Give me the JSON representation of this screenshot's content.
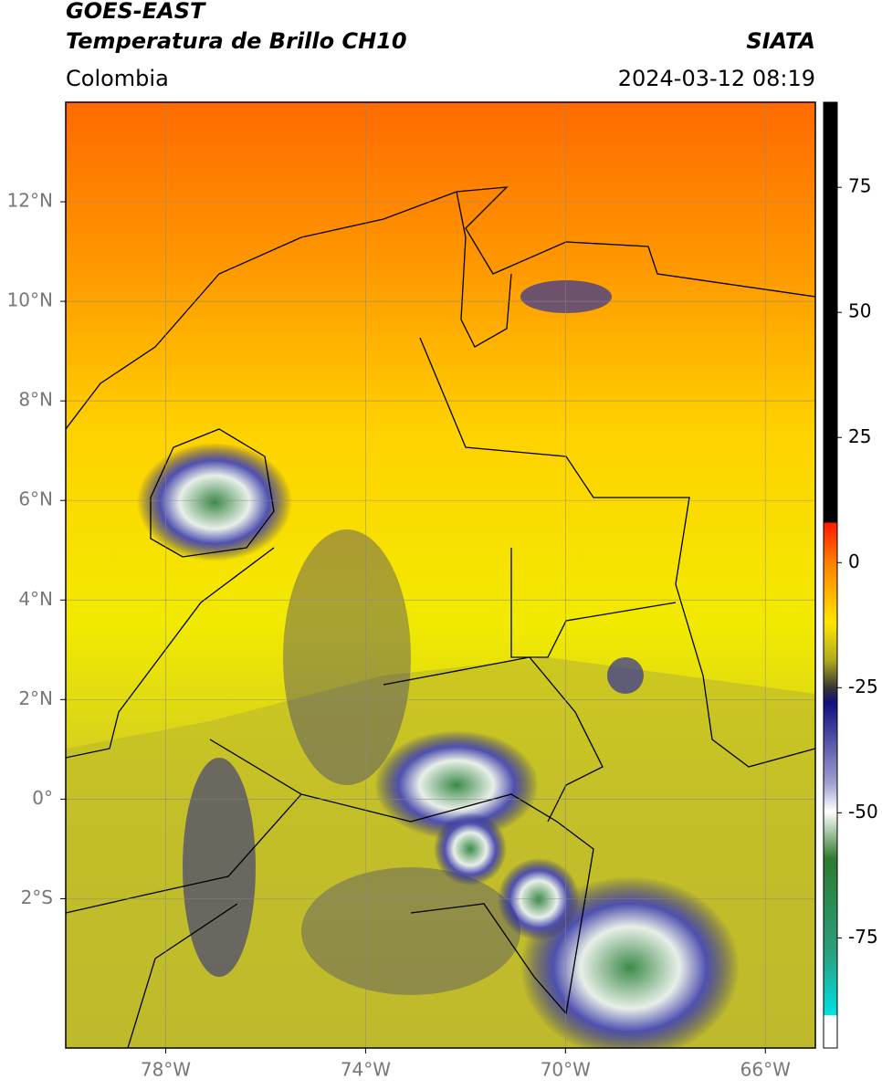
{
  "header": {
    "title_line1": "GOES-EAST",
    "title_line2": "Temperatura de Brillo CH10",
    "brand": "SIATA",
    "region": "Colombia",
    "timestamp": "2024-03-12 08:19"
  },
  "map": {
    "xlim": [
      -80,
      -65
    ],
    "ylim": [
      -5,
      14
    ],
    "xticks": [
      {
        "value": -78,
        "label": "78°W"
      },
      {
        "value": -74,
        "label": "74°W"
      },
      {
        "value": -70,
        "label": "70°W"
      },
      {
        "value": -66,
        "label": "66°W"
      }
    ],
    "yticks": [
      {
        "value": 12,
        "label": "12°N"
      },
      {
        "value": 10,
        "label": "10°N"
      },
      {
        "value": 8,
        "label": "8°N"
      },
      {
        "value": 6,
        "label": "6°N"
      },
      {
        "value": 4,
        "label": "4°N"
      },
      {
        "value": 2,
        "label": "2°N"
      },
      {
        "value": 0,
        "label": "0°"
      },
      {
        "value": -2,
        "label": "2°S"
      }
    ],
    "grid": true
  },
  "colorbar": {
    "lim": [
      -97,
      92
    ],
    "ticks": [
      75,
      50,
      25,
      0,
      -25,
      -50,
      -75
    ]
  }
}
